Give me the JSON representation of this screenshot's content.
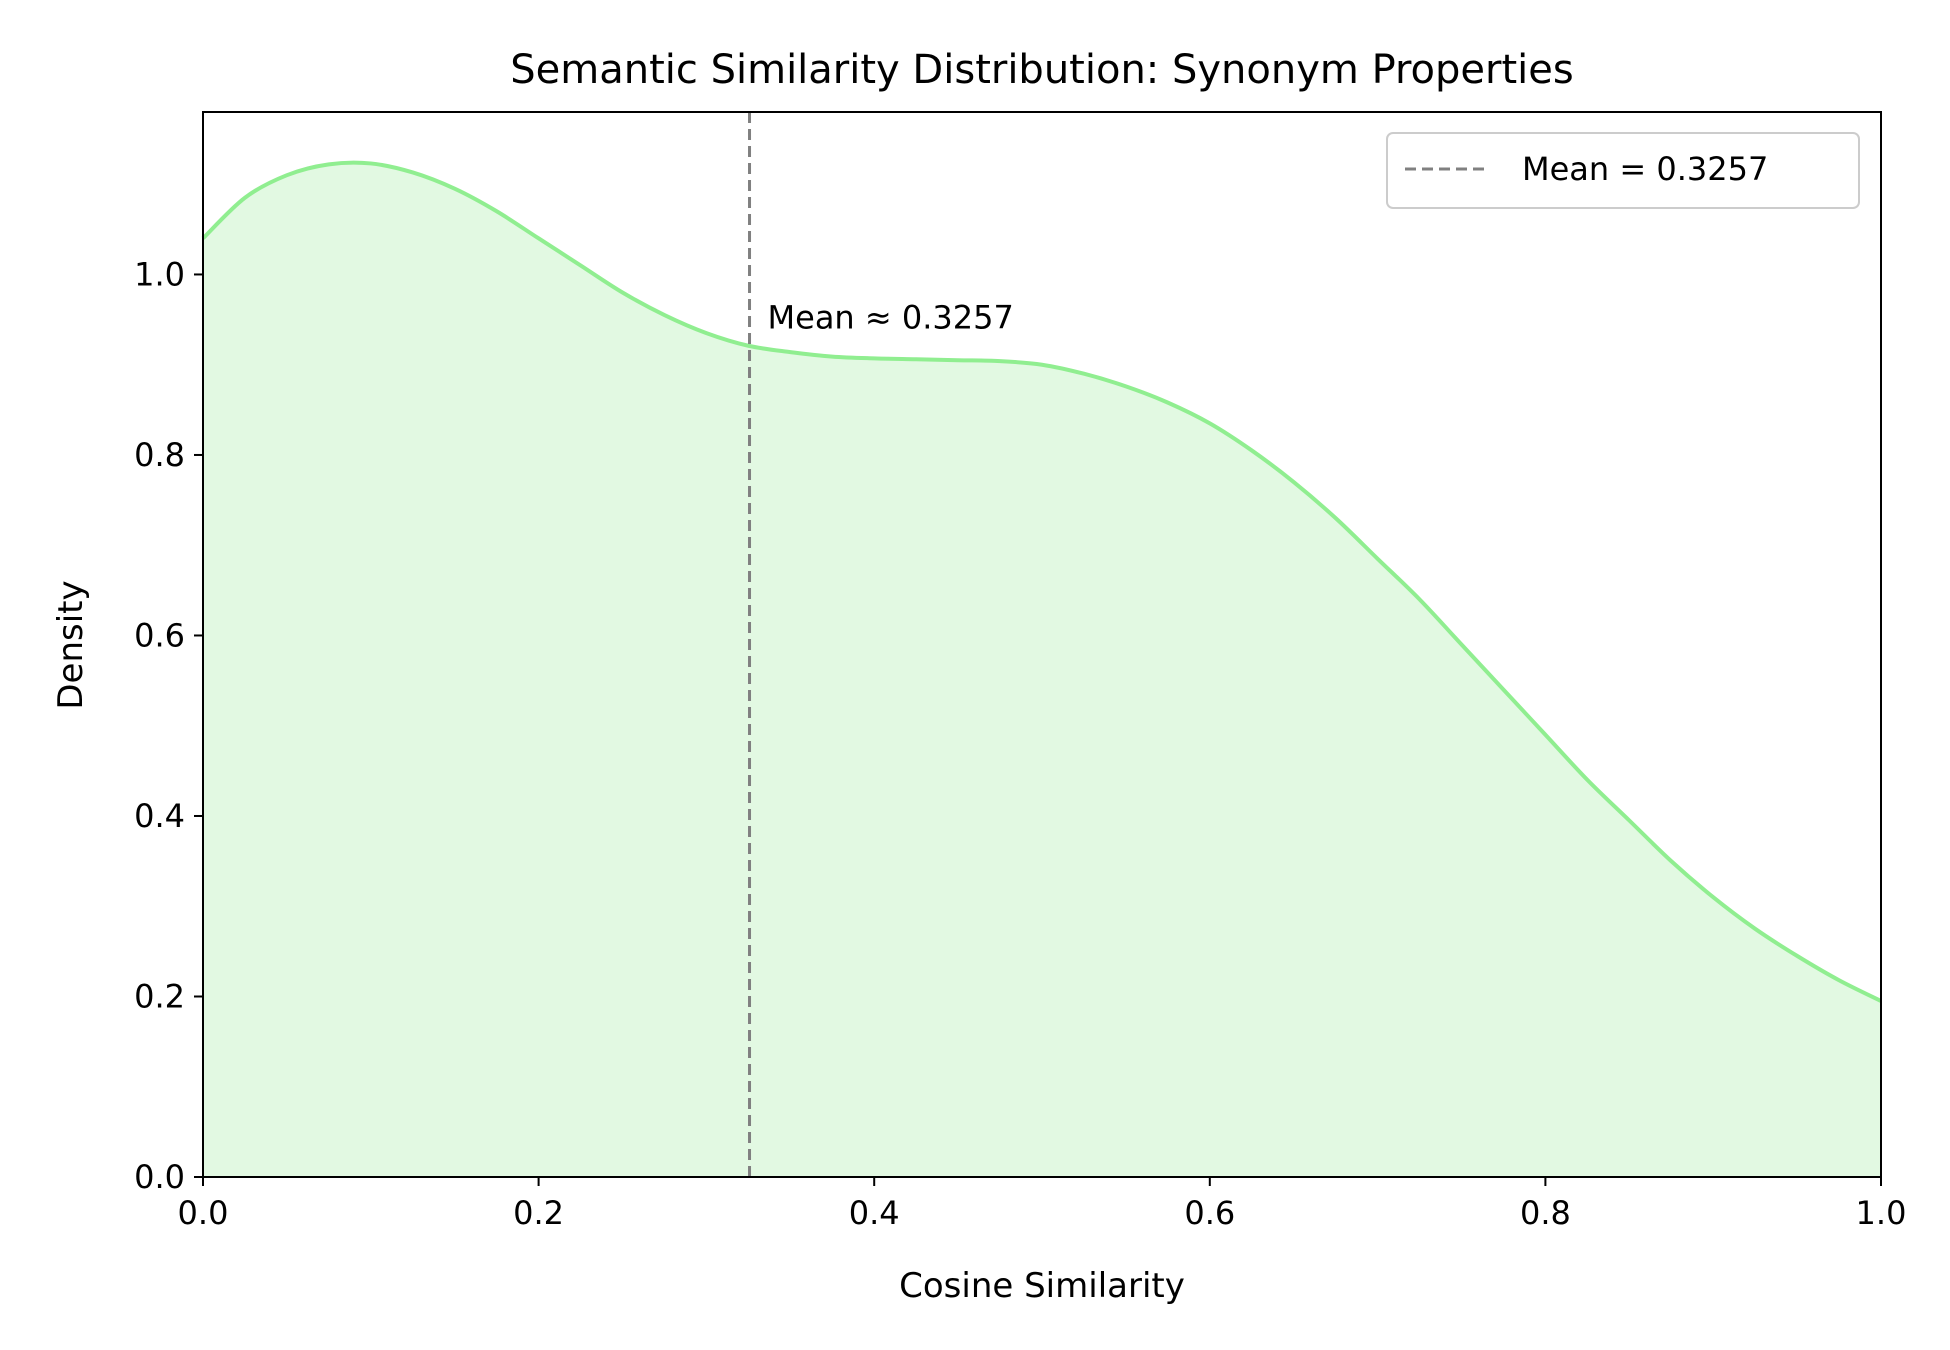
{
  "chart_data": {
    "type": "area",
    "title": "Semantic Similarity Distribution: Synonym Properties",
    "xlabel": "Cosine Similarity",
    "ylabel": "Density",
    "xlim": [
      0.0,
      1.0
    ],
    "ylim": [
      0.0,
      1.18
    ],
    "x_ticks": [
      "0.0",
      "0.2",
      "0.4",
      "0.6",
      "0.8",
      "1.0"
    ],
    "y_ticks": [
      "0.0",
      "0.2",
      "0.4",
      "0.6",
      "0.8",
      "1.0"
    ],
    "grid": false,
    "legend_position": "top-right",
    "series": [
      {
        "x": [
          0.0,
          0.025,
          0.05,
          0.075,
          0.1,
          0.125,
          0.15,
          0.175,
          0.2,
          0.225,
          0.25,
          0.275,
          0.3,
          0.325,
          0.35,
          0.375,
          0.4,
          0.425,
          0.45,
          0.475,
          0.5,
          0.525,
          0.55,
          0.575,
          0.6,
          0.625,
          0.65,
          0.675,
          0.7,
          0.725,
          0.75,
          0.775,
          0.8,
          0.825,
          0.85,
          0.875,
          0.9,
          0.925,
          0.95,
          0.975,
          1.0
        ],
        "y": [
          1.04,
          1.085,
          1.11,
          1.122,
          1.123,
          1.113,
          1.095,
          1.07,
          1.04,
          1.01,
          0.98,
          0.955,
          0.935,
          0.921,
          0.914,
          0.909,
          0.907,
          0.906,
          0.905,
          0.904,
          0.9,
          0.89,
          0.876,
          0.858,
          0.835,
          0.805,
          0.77,
          0.73,
          0.685,
          0.64,
          0.59,
          0.54,
          0.49,
          0.44,
          0.395,
          0.35,
          0.31,
          0.275,
          0.245,
          0.218,
          0.195
        ],
        "line_color": "#90ee90",
        "fill_color": "#e2f9e2"
      }
    ],
    "mean_line": {
      "x": 0.3257,
      "legend_label": "Mean = 0.3257",
      "annotation": "Mean ≈ 0.3257",
      "color": "#808080"
    }
  }
}
